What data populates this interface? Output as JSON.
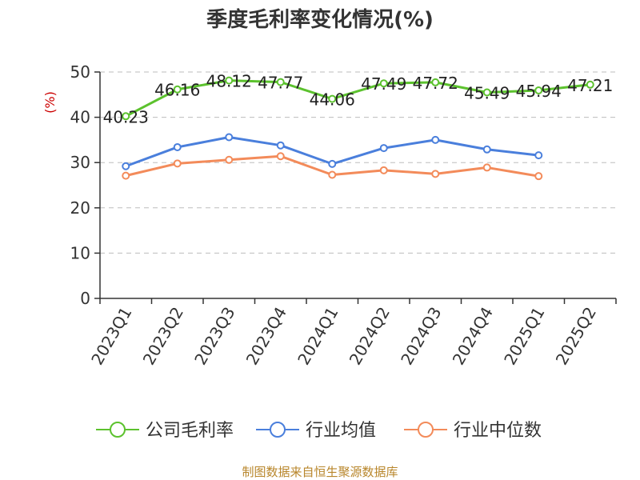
{
  "chart_data": {
    "type": "line",
    "title": "季度毛利率变化情况(%)",
    "ylabel": "(%)",
    "ylim": [
      0,
      50
    ],
    "yticks": [
      0,
      10,
      20,
      30,
      40,
      50
    ],
    "grid": "horizontal dashed",
    "legend_position": "bottom",
    "categories": [
      "2023Q1",
      "2023Q2",
      "2023Q3",
      "2023Q4",
      "2024Q1",
      "2024Q2",
      "2024Q3",
      "2024Q4",
      "2025Q1",
      "2025Q2"
    ],
    "series": [
      {
        "name": "公司毛利率",
        "color": "#5cc22e",
        "show_labels": true,
        "values": [
          40.23,
          46.16,
          48.12,
          47.77,
          44.06,
          47.49,
          47.72,
          45.49,
          45.94,
          47.21
        ],
        "labels": [
          "40.23",
          "46.16",
          "48.12",
          "47.77",
          "44.06",
          "47.49",
          "47.72",
          "45.49",
          "45.94",
          "47.21"
        ]
      },
      {
        "name": "行业均值",
        "color": "#4a7fdc",
        "show_labels": false,
        "values": [
          29.2,
          33.4,
          35.6,
          33.8,
          29.7,
          33.2,
          35.0,
          32.9,
          31.6,
          null
        ]
      },
      {
        "name": "行业中位数",
        "color": "#f38b5a",
        "show_labels": false,
        "values": [
          27.1,
          29.8,
          30.6,
          31.4,
          27.3,
          28.3,
          27.5,
          28.9,
          27.0,
          null
        ]
      }
    ],
    "source": "制图数据来自恒生聚源数据库"
  }
}
